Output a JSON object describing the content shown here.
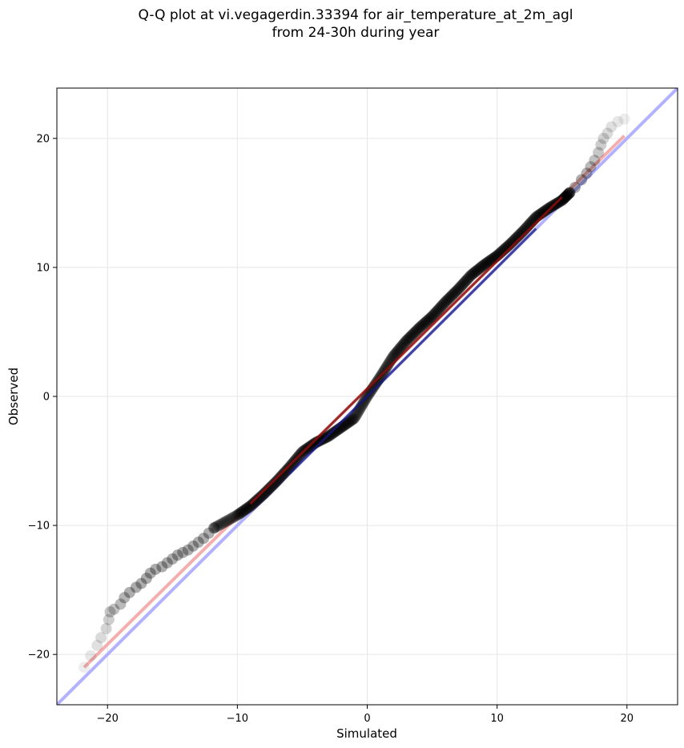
{
  "chart_data": {
    "type": "scatter",
    "title_lines": [
      "Q-Q plot at vi.vegagerdin.33394 for air_temperature_at_2m_agl",
      "from 24-30h during year"
    ],
    "xlabel": "Simulated",
    "ylabel": "Observed",
    "xlim": [
      -23.9,
      23.9
    ],
    "ylim": [
      -23.9,
      23.9
    ],
    "xticks": [
      -20,
      -10,
      0,
      10,
      20
    ],
    "yticks": [
      -20,
      -10,
      0,
      10,
      20
    ],
    "xtick_labels": [
      "−20",
      "−10",
      "0",
      "10",
      "20"
    ],
    "ytick_labels": [
      "−20",
      "−10",
      "0",
      "10",
      "20"
    ],
    "grid": true,
    "identity_line": {
      "color": "#aaaaff",
      "x": [
        -23.9,
        23.9
      ],
      "y": [
        -23.9,
        23.9
      ]
    },
    "fit_line": {
      "color": "#f4a5a5",
      "x": [
        -21.8,
        19.8
      ],
      "y": [
        -21.0,
        20.2
      ]
    },
    "marker_color": "#000000",
    "tail_points": [
      {
        "x": -21.8,
        "y": -21.0
      },
      {
        "x": -21.3,
        "y": -20.1
      },
      {
        "x": -20.8,
        "y": -19.3
      },
      {
        "x": -20.5,
        "y": -18.7
      },
      {
        "x": -20.1,
        "y": -18.0
      },
      {
        "x": -19.9,
        "y": -17.3
      },
      {
        "x": -19.8,
        "y": -16.7
      },
      {
        "x": -19.5,
        "y": -16.5
      },
      {
        "x": -19.0,
        "y": -16.1
      },
      {
        "x": -18.7,
        "y": -15.6
      },
      {
        "x": -18.3,
        "y": -15.2
      },
      {
        "x": -17.8,
        "y": -14.8
      },
      {
        "x": -17.4,
        "y": -14.5
      },
      {
        "x": -17.0,
        "y": -14.1
      },
      {
        "x": -16.7,
        "y": -13.7
      },
      {
        "x": -16.3,
        "y": -13.4
      },
      {
        "x": -15.8,
        "y": -13.2
      },
      {
        "x": -15.4,
        "y": -12.9
      },
      {
        "x": -15.0,
        "y": -12.6
      },
      {
        "x": -14.6,
        "y": -12.3
      },
      {
        "x": -14.2,
        "y": -12.1
      },
      {
        "x": -13.8,
        "y": -11.9
      },
      {
        "x": -13.4,
        "y": -11.6
      },
      {
        "x": -13.0,
        "y": -11.3
      },
      {
        "x": -12.6,
        "y": -11.0
      },
      {
        "x": -12.2,
        "y": -10.6
      },
      {
        "x": -11.8,
        "y": -10.2
      },
      {
        "x": 15.6,
        "y": 15.8
      },
      {
        "x": 16.0,
        "y": 16.2
      },
      {
        "x": 16.5,
        "y": 16.8
      },
      {
        "x": 16.9,
        "y": 17.3
      },
      {
        "x": 17.2,
        "y": 17.8
      },
      {
        "x": 17.5,
        "y": 18.3
      },
      {
        "x": 17.8,
        "y": 18.9
      },
      {
        "x": 18.0,
        "y": 19.5
      },
      {
        "x": 18.2,
        "y": 20.0
      },
      {
        "x": 18.5,
        "y": 20.4
      },
      {
        "x": 18.8,
        "y": 20.9
      },
      {
        "x": 19.3,
        "y": 21.3
      },
      {
        "x": 19.8,
        "y": 21.5
      }
    ],
    "core_points_path": {
      "x": [
        -11.8,
        -10.0,
        -9.0,
        -8.0,
        -7.0,
        -6.0,
        -5.0,
        -4.0,
        -3.0,
        -2.0,
        -1.0,
        0.0,
        1.0,
        2.0,
        3.0,
        4.0,
        5.0,
        6.0,
        7.0,
        8.0,
        9.0,
        10.0,
        11.0,
        12.0,
        13.0,
        14.0,
        15.0,
        15.6
      ],
      "y": [
        -10.2,
        -9.2,
        -8.5,
        -7.6,
        -6.6,
        -5.5,
        -4.3,
        -3.6,
        -3.1,
        -2.4,
        -1.7,
        0.0,
        1.5,
        3.1,
        4.3,
        5.3,
        6.2,
        7.3,
        8.3,
        9.4,
        10.2,
        10.9,
        11.8,
        12.8,
        13.9,
        14.6,
        15.2,
        15.8
      ]
    }
  }
}
